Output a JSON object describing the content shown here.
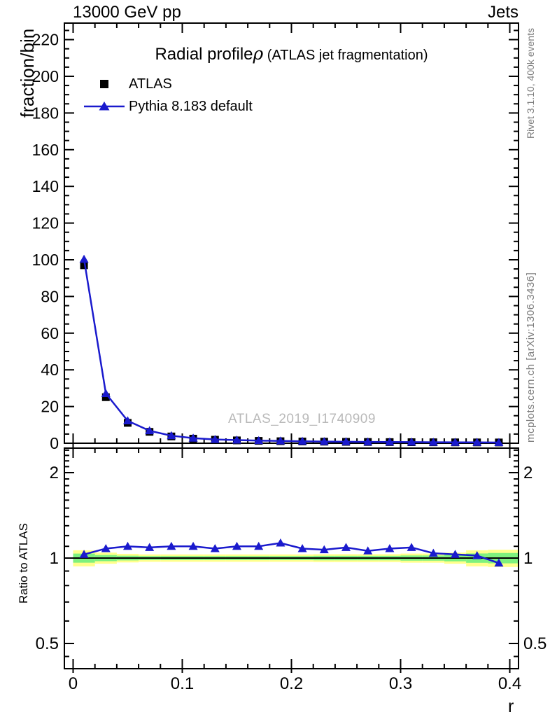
{
  "header": {
    "left": "13000 GeV pp",
    "right": "Jets"
  },
  "side_text_right_top": "Rivet 3.1.10,  400k events",
  "side_text_right_bottom": "mcplots.cern.ch [arXiv:1306.3436]",
  "watermark": "ATLAS_2019_I1740909",
  "title": {
    "main": "Radial profile",
    "symbol": "ρ",
    "suffix": " (ATLAS jet fragmentation)"
  },
  "axis": {
    "x_label": "r",
    "y_label_main": "fraction/bin",
    "y_label_ratio": "Ratio to ATLAS"
  },
  "legend": [
    {
      "label": "ATLAS",
      "marker": "square",
      "color": "#000000"
    },
    {
      "label": "Pythia 8.183 default",
      "marker": "triangle-line",
      "color": "#1a1acd"
    }
  ],
  "colors": {
    "mc_blue": "#1a1acd",
    "band_yellow": "#ffff8c",
    "band_green": "#7ef17e",
    "watermark_gray": "#b9b9b9",
    "side_text_gray": "#7c7c7c"
  },
  "chart_data": [
    {
      "type": "line",
      "title": "Radial profile ρ (ATLAS jet fragmentation)",
      "xlabel": "r",
      "ylabel": "fraction/bin",
      "xlim": [
        -0.008,
        0.408
      ],
      "ylim": [
        0,
        229
      ],
      "xticks": [
        0,
        0.1,
        0.2,
        0.3,
        0.4
      ],
      "yticks": [
        0,
        20,
        40,
        60,
        80,
        100,
        120,
        140,
        160,
        180,
        200,
        220
      ],
      "grid": false,
      "legend_position": "top-left",
      "x": [
        0.01,
        0.03,
        0.05,
        0.07,
        0.09,
        0.11,
        0.13,
        0.15,
        0.17,
        0.19,
        0.21,
        0.23,
        0.25,
        0.27,
        0.29,
        0.31,
        0.33,
        0.35,
        0.37,
        0.39
      ],
      "series": [
        {
          "name": "ATLAS",
          "marker": "square",
          "color": "#000000",
          "values": [
            97,
            25.1,
            11.1,
            6.2,
            3.7,
            2.5,
            1.9,
            1.55,
            1.3,
            1.1,
            0.95,
            0.85,
            0.75,
            0.68,
            0.62,
            0.57,
            0.52,
            0.48,
            0.45,
            0.42
          ]
        },
        {
          "name": "Pythia 8.183 default",
          "marker": "triangle",
          "color": "#1a1acd",
          "values": [
            100.3,
            27.1,
            12.2,
            6.8,
            4.1,
            2.75,
            2.05,
            1.71,
            1.43,
            1.24,
            1.03,
            0.91,
            0.82,
            0.72,
            0.67,
            0.62,
            0.54,
            0.49,
            0.46,
            0.4
          ]
        }
      ]
    },
    {
      "type": "line",
      "ylabel": "Ratio to ATLAS",
      "yscale": "log",
      "xlim": [
        -0.008,
        0.408
      ],
      "ylim": [
        0.41,
        2.44
      ],
      "xticks": [
        0,
        0.1,
        0.2,
        0.3,
        0.4
      ],
      "yticks": [
        0.5,
        1,
        2
      ],
      "reference_line": 1,
      "x": [
        0.01,
        0.03,
        0.05,
        0.07,
        0.09,
        0.11,
        0.13,
        0.15,
        0.17,
        0.19,
        0.21,
        0.23,
        0.25,
        0.27,
        0.29,
        0.31,
        0.33,
        0.35,
        0.37,
        0.39
      ],
      "series": [
        {
          "name": "Pythia 8.183 default / ATLAS",
          "marker": "triangle",
          "color": "#1a1acd",
          "values": [
            1.03,
            1.08,
            1.1,
            1.09,
            1.1,
            1.1,
            1.08,
            1.1,
            1.1,
            1.13,
            1.08,
            1.07,
            1.09,
            1.06,
            1.08,
            1.09,
            1.04,
            1.03,
            1.02,
            0.96
          ]
        }
      ],
      "bands": [
        {
          "x0": 0.0,
          "x1": 0.02,
          "yellow": [
            0.935,
            1.065
          ],
          "green": [
            0.963,
            1.037
          ]
        },
        {
          "x0": 0.02,
          "x1": 0.04,
          "yellow": [
            0.955,
            1.045
          ],
          "green": [
            0.975,
            1.025
          ]
        },
        {
          "x0": 0.04,
          "x1": 0.06,
          "yellow": [
            0.965,
            1.035
          ],
          "green": [
            0.981,
            1.019
          ]
        },
        {
          "x0": 0.06,
          "x1": 0.08,
          "yellow": [
            0.97,
            1.03
          ],
          "green": [
            0.984,
            1.016
          ]
        },
        {
          "x0": 0.08,
          "x1": 0.1,
          "yellow": [
            0.97,
            1.03
          ],
          "green": [
            0.984,
            1.016
          ]
        },
        {
          "x0": 0.1,
          "x1": 0.12,
          "yellow": [
            0.97,
            1.03
          ],
          "green": [
            0.984,
            1.016
          ]
        },
        {
          "x0": 0.12,
          "x1": 0.14,
          "yellow": [
            0.97,
            1.03
          ],
          "green": [
            0.984,
            1.016
          ]
        },
        {
          "x0": 0.14,
          "x1": 0.16,
          "yellow": [
            0.97,
            1.03
          ],
          "green": [
            0.984,
            1.016
          ]
        },
        {
          "x0": 0.16,
          "x1": 0.18,
          "yellow": [
            0.97,
            1.03
          ],
          "green": [
            0.984,
            1.016
          ]
        },
        {
          "x0": 0.18,
          "x1": 0.2,
          "yellow": [
            0.97,
            1.03
          ],
          "green": [
            0.984,
            1.016
          ]
        },
        {
          "x0": 0.2,
          "x1": 0.22,
          "yellow": [
            0.97,
            1.03
          ],
          "green": [
            0.984,
            1.016
          ]
        },
        {
          "x0": 0.22,
          "x1": 0.24,
          "yellow": [
            0.968,
            1.032
          ],
          "green": [
            0.982,
            1.018
          ]
        },
        {
          "x0": 0.24,
          "x1": 0.26,
          "yellow": [
            0.968,
            1.032
          ],
          "green": [
            0.982,
            1.018
          ]
        },
        {
          "x0": 0.26,
          "x1": 0.28,
          "yellow": [
            0.968,
            1.032
          ],
          "green": [
            0.982,
            1.018
          ]
        },
        {
          "x0": 0.28,
          "x1": 0.3,
          "yellow": [
            0.968,
            1.032
          ],
          "green": [
            0.982,
            1.018
          ]
        },
        {
          "x0": 0.3,
          "x1": 0.32,
          "yellow": [
            0.963,
            1.037
          ],
          "green": [
            0.979,
            1.021
          ]
        },
        {
          "x0": 0.32,
          "x1": 0.34,
          "yellow": [
            0.963,
            1.037
          ],
          "green": [
            0.979,
            1.021
          ]
        },
        {
          "x0": 0.34,
          "x1": 0.36,
          "yellow": [
            0.955,
            1.045
          ],
          "green": [
            0.974,
            1.026
          ]
        },
        {
          "x0": 0.36,
          "x1": 0.38,
          "yellow": [
            0.935,
            1.065
          ],
          "green": [
            0.962,
            1.038
          ]
        },
        {
          "x0": 0.38,
          "x1": 0.408,
          "yellow": [
            0.93,
            1.07
          ],
          "green": [
            0.958,
            1.042
          ]
        }
      ]
    }
  ]
}
